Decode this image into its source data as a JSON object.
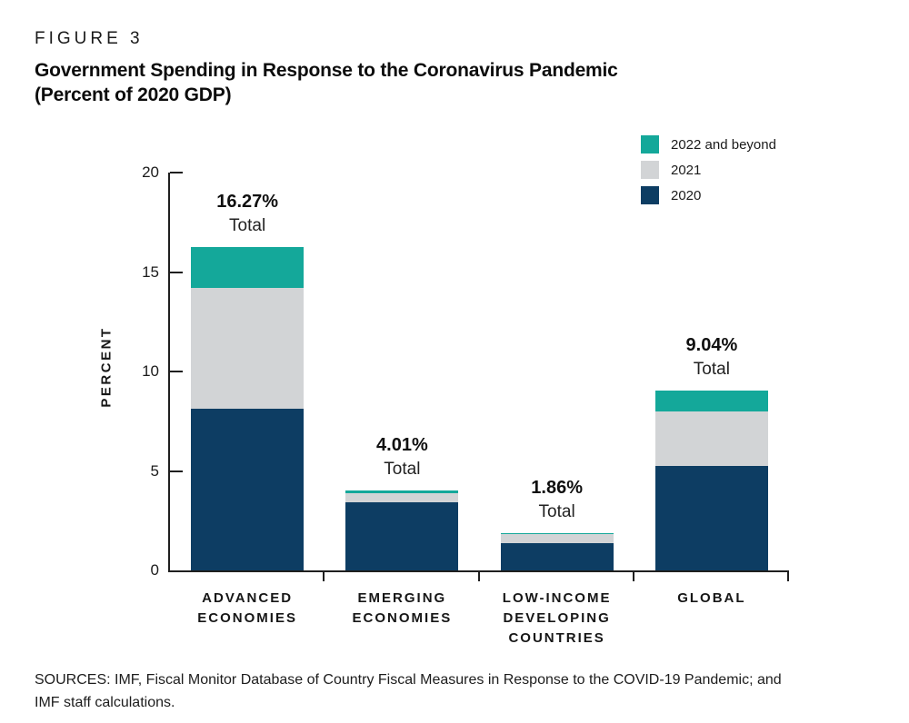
{
  "header": {
    "figure_label": "FIGURE 3",
    "title": "Government Spending in Response to the Coronavirus Pandemic",
    "subtitle": "(Percent of 2020 GDP)"
  },
  "chart_data": {
    "type": "bar",
    "stacked": true,
    "title": "Government Spending in Response to the Coronavirus Pandemic",
    "subtitle": "(Percent of 2020 GDP)",
    "ylabel": "PERCENT",
    "ylim": [
      0,
      20
    ],
    "yticks": [
      0,
      5,
      10,
      15,
      20
    ],
    "grid": false,
    "legend_position": "top-right",
    "categories": [
      "ADVANCED ECONOMIES",
      "EMERGING ECONOMIES",
      "LOW-INCOME DEVELOPING COUNTRIES",
      "GLOBAL"
    ],
    "totals": [
      "16.27%",
      "4.01%",
      "1.86%",
      "9.04%"
    ],
    "total_caption": "Total",
    "series": [
      {
        "name": "2020",
        "color": "#0d3d63",
        "values": [
          8.15,
          3.44,
          1.35,
          5.24
        ]
      },
      {
        "name": "2021",
        "color": "#d2d4d6",
        "values": [
          6.04,
          0.42,
          0.48,
          2.74
        ]
      },
      {
        "name": "2022 and beyond",
        "color": "#14a89a",
        "values": [
          2.08,
          0.15,
          0.03,
          1.06
        ]
      }
    ],
    "legend_order": [
      "2022 and beyond",
      "2021",
      "2020"
    ]
  },
  "footer": {
    "lines": [
      "SOURCES: IMF, Fiscal Monitor Database of Country Fiscal Measures in Response to the COVID-19 Pandemic; and",
      "IMF staff calculations."
    ]
  },
  "colors": {
    "accent_teal": "#14a89a",
    "neutral_gray": "#d2d4d6",
    "brand_navy": "#0d3d63",
    "axis": "#1f1f1f"
  }
}
